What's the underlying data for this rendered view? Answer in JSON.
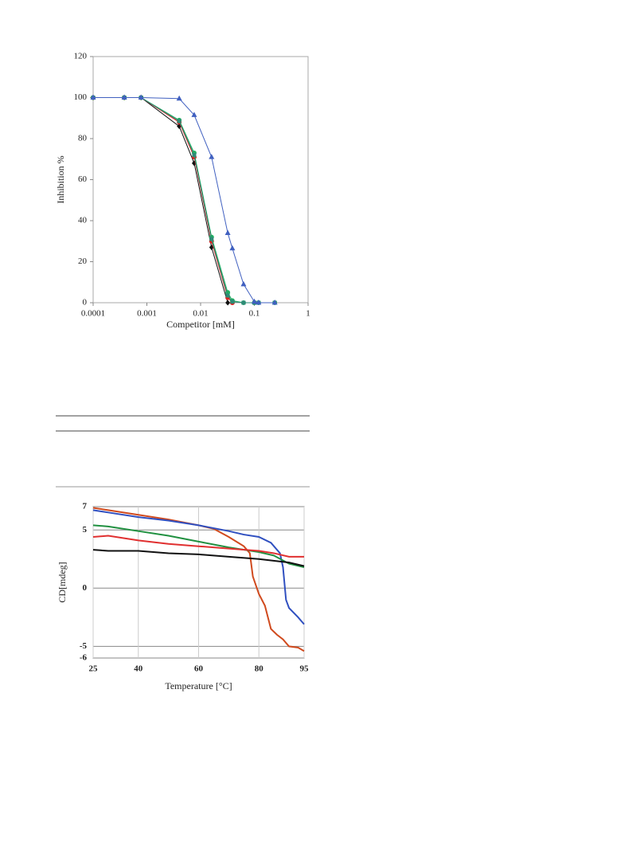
{
  "chart_data": [
    {
      "type": "line",
      "log_x": true,
      "xlabel": "Competitor [mM]",
      "ylabel": "Inhibition %",
      "xlim": [
        0.0001,
        1
      ],
      "xticks": [
        0.0001,
        0.001,
        0.01,
        0.1,
        1
      ],
      "ylim": [
        0,
        120
      ],
      "yticks": [
        0,
        20,
        40,
        60,
        80,
        100,
        120
      ],
      "grid": false,
      "series": [
        {
          "color": "#111111",
          "marker": "diamond",
          "x": [
            0.0001,
            0.00038,
            0.00078,
            0.004,
            0.0076,
            0.016,
            0.032
          ],
          "values": [
            100,
            100,
            100,
            86,
            68,
            27,
            0
          ]
        },
        {
          "color": "#e02020",
          "marker": "circle",
          "x": [
            0.0001,
            0.00038,
            0.00078,
            0.004,
            0.0076,
            0.016,
            0.032,
            0.039
          ],
          "values": [
            100,
            100,
            100,
            88,
            71,
            30,
            2.5,
            0
          ]
        },
        {
          "color": "#20b060",
          "marker": "circle",
          "x": [
            0.0001,
            0.00038,
            0.00078,
            0.004,
            0.0076,
            0.016,
            0.032,
            0.039,
            0.063,
            0.1,
            0.12,
            0.24
          ],
          "values": [
            100,
            100,
            100,
            89,
            73,
            32,
            5,
            1,
            0,
            0,
            0,
            0
          ]
        },
        {
          "color": "#2e8b77",
          "marker": "square",
          "x": [
            0.0001,
            0.00038,
            0.00078,
            0.004,
            0.0076,
            0.016,
            0.032,
            0.039,
            0.063,
            0.1,
            0.12,
            0.24
          ],
          "values": [
            100,
            100,
            100,
            88.5,
            72,
            31,
            3.5,
            0.5,
            0,
            0,
            0,
            0
          ]
        },
        {
          "color": "#4060c0",
          "marker": "triangle",
          "x": [
            0.0001,
            0.00038,
            0.00078,
            0.004,
            0.0076,
            0.016,
            0.032,
            0.039,
            0.063,
            0.1,
            0.12,
            0.24
          ],
          "values": [
            100,
            100,
            100,
            99.5,
            91.5,
            71,
            34,
            26.5,
            9,
            0.5,
            0,
            0
          ]
        }
      ]
    },
    {
      "type": "line",
      "log_x": false,
      "xlabel": "Temperature [°C]",
      "ylabel": "CD[mdeg]",
      "xlim": [
        25,
        95
      ],
      "xticks": [
        25,
        40,
        60,
        80,
        95
      ],
      "ylim": [
        -6,
        7
      ],
      "yticks": [
        -6,
        -5,
        0,
        5,
        7
      ],
      "grid": true,
      "series": [
        {
          "color": "#d04a1e",
          "x": [
            25,
            30,
            40,
            50,
            60,
            65,
            70,
            75,
            77,
            78,
            80,
            82,
            84,
            86,
            88,
            90,
            93,
            95
          ],
          "values": [
            6.9,
            6.7,
            6.3,
            5.9,
            5.4,
            5.1,
            4.4,
            3.6,
            3,
            1,
            -0.5,
            -1.5,
            -3.5,
            -4,
            -4.4,
            -5,
            -5.1,
            -5.4
          ]
        },
        {
          "color": "#3050c0",
          "x": [
            25,
            30,
            40,
            50,
            60,
            70,
            75,
            80,
            84,
            87,
            88,
            89,
            90,
            93,
            95
          ],
          "values": [
            6.7,
            6.5,
            6.1,
            5.8,
            5.4,
            4.9,
            4.6,
            4.4,
            3.9,
            3,
            1.8,
            -1,
            -1.7,
            -2.5,
            -3.1
          ]
        },
        {
          "color": "#209040",
          "x": [
            25,
            30,
            40,
            50,
            60,
            70,
            80,
            85,
            90,
            95
          ],
          "values": [
            5.4,
            5.3,
            4.9,
            4.5,
            4,
            3.5,
            3.1,
            2.8,
            2.1,
            1.8
          ]
        },
        {
          "color": "#e03030",
          "x": [
            25,
            30,
            40,
            50,
            60,
            70,
            80,
            85,
            90,
            95
          ],
          "values": [
            4.4,
            4.5,
            4.1,
            3.8,
            3.6,
            3.4,
            3.2,
            3,
            2.7,
            2.7
          ]
        },
        {
          "color": "#111111",
          "x": [
            25,
            30,
            40,
            50,
            60,
            70,
            80,
            90,
            95
          ],
          "values": [
            3.3,
            3.2,
            3.2,
            3,
            2.9,
            2.7,
            2.5,
            2.2,
            1.9
          ]
        }
      ]
    }
  ]
}
